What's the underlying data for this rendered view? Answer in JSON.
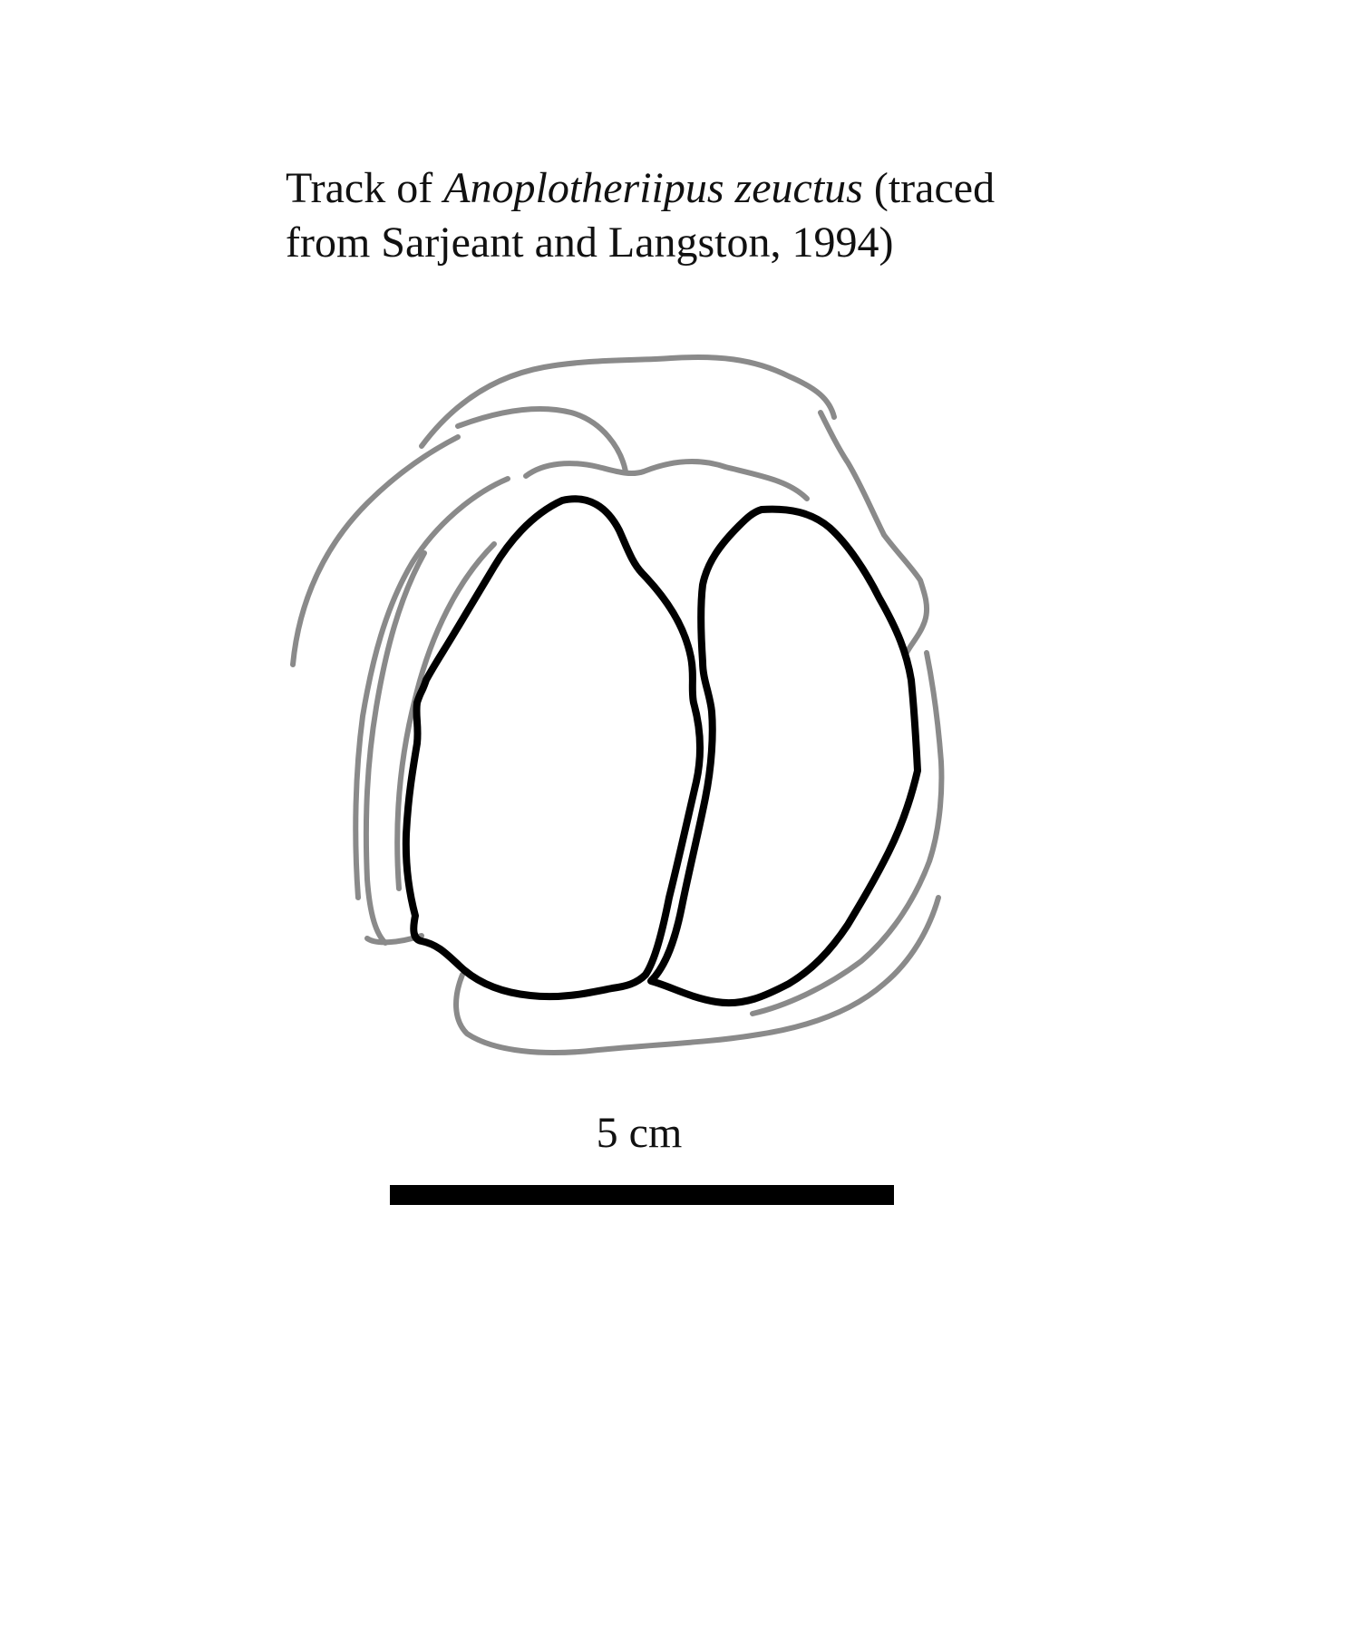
{
  "caption": {
    "prefix": "Track of ",
    "species": "Anoplotheriipus zeuctus",
    "line1_suffix": " (traced",
    "line2": "from Sarjeant and Langston, 1994)"
  },
  "scale": {
    "label": "5 cm"
  },
  "colors": {
    "outer_outline": "#8a8a8a",
    "digit_outline": "#000000",
    "background": "#ffffff"
  }
}
